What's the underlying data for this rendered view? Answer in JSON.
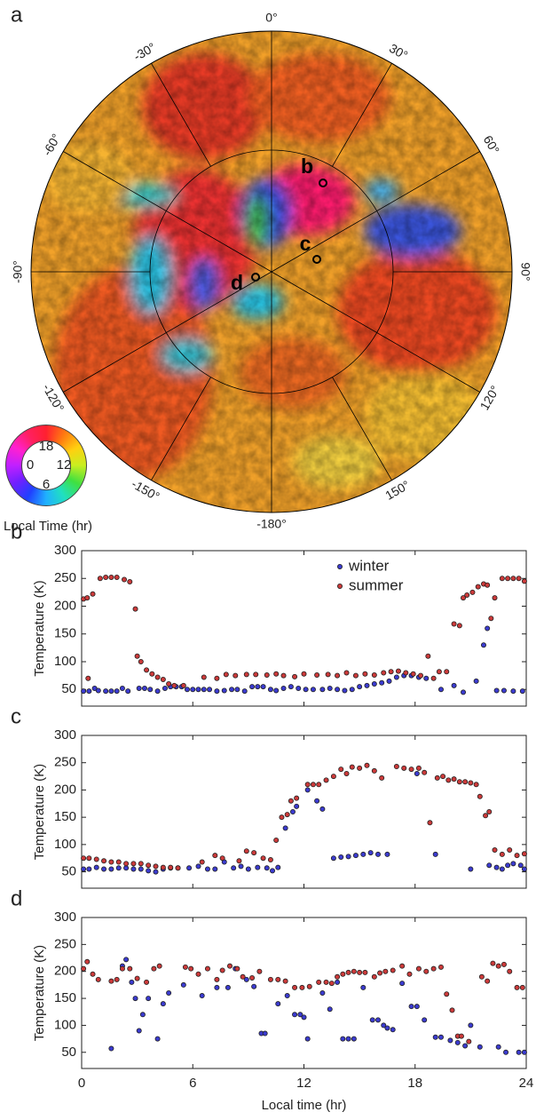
{
  "map": {
    "panel_label": "a",
    "longitude_labels": [
      "0°",
      "30°",
      "60°",
      "90°",
      "120°",
      "150°",
      "-180°",
      "-150°",
      "-120°",
      "-90°",
      "-60°",
      "-30°"
    ],
    "sites": [
      "b",
      "c",
      "d"
    ],
    "colorwheel": {
      "labels": [
        "18",
        "12",
        "6",
        "0"
      ],
      "title": "Local Time (hr)"
    }
  },
  "chart_data": [
    {
      "type": "scatter",
      "panel_label": "b",
      "y_label": "Temperature (K)",
      "xlim": [
        0,
        24
      ],
      "ylim": [
        20,
        300
      ],
      "xticks": [
        0,
        6,
        12,
        18,
        24
      ],
      "show_xtick_labels": false,
      "yticks": [
        50,
        100,
        150,
        200,
        250,
        300
      ],
      "legend": "upper right",
      "series": [
        {
          "name": "winter",
          "color": "#3b3bd0",
          "x": [
            0.1,
            0.4,
            0.7,
            0.9,
            1.3,
            1.6,
            1.9,
            2.2,
            2.5,
            3.1,
            3.4,
            3.7,
            4.1,
            4.5,
            4.8,
            5.1,
            5.4,
            5.7,
            6.0,
            6.3,
            6.6,
            6.9,
            7.3,
            7.7,
            8.1,
            8.4,
            8.8,
            9.2,
            9.5,
            9.8,
            10.2,
            10.5,
            10.9,
            11.3,
            11.7,
            12.1,
            12.5,
            13.0,
            13.4,
            13.8,
            14.2,
            14.6,
            15.0,
            15.4,
            15.8,
            16.2,
            16.6,
            17.0,
            17.4,
            17.8,
            18.2,
            18.6,
            19.4,
            20.1,
            20.6,
            21.3,
            21.7,
            21.9,
            22.4,
            22.8,
            23.3,
            23.8
          ],
          "values": [
            47,
            47,
            52,
            48,
            47,
            47,
            47,
            52,
            47,
            52,
            52,
            50,
            47,
            52,
            55,
            55,
            55,
            50,
            50,
            50,
            50,
            50,
            47,
            48,
            50,
            50,
            47,
            55,
            55,
            55,
            50,
            48,
            52,
            55,
            52,
            50,
            50,
            50,
            52,
            50,
            48,
            50,
            55,
            57,
            60,
            62,
            65,
            72,
            75,
            75,
            72,
            70,
            50,
            57,
            45,
            65,
            130,
            160,
            48,
            48,
            47,
            47
          ]
        },
        {
          "name": "summer",
          "color": "#cc3a3a",
          "x": [
            0.1,
            0.3,
            0.35,
            0.6,
            1.0,
            1.3,
            1.6,
            1.9,
            2.3,
            2.6,
            2.9,
            3.0,
            3.2,
            3.5,
            3.8,
            4.1,
            4.4,
            4.7,
            5.0,
            5.5,
            6.6,
            7.3,
            7.8,
            8.3,
            8.9,
            9.4,
            10.0,
            10.5,
            10.9,
            11.5,
            12.0,
            12.7,
            13.3,
            13.8,
            14.3,
            14.8,
            15.3,
            15.8,
            16.3,
            16.7,
            17.1,
            17.5,
            17.9,
            18.3,
            18.7,
            19.0,
            19.3,
            19.7,
            20.1,
            20.4,
            20.6,
            20.8,
            21.1,
            21.4,
            21.7,
            21.9,
            22.1,
            22.3,
            22.7,
            23.0,
            23.3,
            23.6,
            23.9
          ],
          "values": [
            213,
            215,
            70,
            222,
            250,
            252,
            252,
            252,
            248,
            244,
            195,
            110,
            100,
            85,
            78,
            72,
            68,
            60,
            57,
            57,
            72,
            70,
            77,
            75,
            77,
            77,
            76,
            78,
            75,
            73,
            78,
            76,
            77,
            75,
            80,
            75,
            78,
            76,
            80,
            82,
            83,
            80,
            78,
            75,
            110,
            70,
            82,
            82,
            168,
            165,
            215,
            220,
            225,
            235,
            240,
            238,
            178,
            215,
            250,
            250,
            250,
            250,
            245
          ]
        }
      ]
    },
    {
      "type": "scatter",
      "panel_label": "c",
      "y_label": "Temperature (K)",
      "xlim": [
        0,
        24
      ],
      "ylim": [
        20,
        300
      ],
      "xticks": [
        0,
        6,
        12,
        18,
        24
      ],
      "show_xtick_labels": false,
      "yticks": [
        50,
        100,
        150,
        200,
        250,
        300
      ],
      "series": [
        {
          "color": "#3b3bd0",
          "x": [
            0.1,
            0.4,
            0.8,
            1.2,
            1.6,
            2.0,
            2.4,
            2.8,
            3.2,
            3.6,
            4.0,
            4.4,
            4.8,
            5.2,
            5.8,
            6.3,
            6.8,
            7.2,
            7.7,
            8.2,
            8.6,
            9.0,
            9.5,
            10.0,
            10.3,
            10.6,
            11.0,
            11.4,
            11.6,
            12.2,
            12.7,
            13.0,
            13.6,
            14.0,
            14.4,
            14.8,
            15.2,
            15.6,
            16.0,
            16.5,
            18.1,
            19.1,
            21.0,
            22.0,
            22.4,
            22.7,
            23.0,
            23.3,
            23.7,
            23.9
          ],
          "values": [
            55,
            55,
            58,
            55,
            55,
            57,
            57,
            55,
            55,
            52,
            50,
            55,
            57,
            57,
            57,
            60,
            55,
            55,
            68,
            57,
            60,
            55,
            58,
            57,
            52,
            58,
            130,
            160,
            170,
            200,
            180,
            165,
            75,
            77,
            78,
            80,
            82,
            85,
            82,
            82,
            230,
            82,
            55,
            62,
            58,
            55,
            62,
            65,
            62,
            55
          ]
        },
        {
          "color": "#cc3a3a",
          "x": [
            0.1,
            0.4,
            0.8,
            1.2,
            1.6,
            2.0,
            2.4,
            2.8,
            3.2,
            3.6,
            4.0,
            4.4,
            4.8,
            5.2,
            6.5,
            7.2,
            7.6,
            8.5,
            8.9,
            9.3,
            9.8,
            10.2,
            10.5,
            10.8,
            11.1,
            11.3,
            11.6,
            12.2,
            12.5,
            12.8,
            13.2,
            13.6,
            14.0,
            14.3,
            14.6,
            15.0,
            15.4,
            15.8,
            16.2,
            17.0,
            17.4,
            17.8,
            18.2,
            18.5,
            18.8,
            19.2,
            19.5,
            19.8,
            20.1,
            20.4,
            20.7,
            21.0,
            21.3,
            21.5,
            21.8,
            22.0,
            22.3,
            22.7,
            23.1,
            23.5,
            23.9
          ],
          "values": [
            75,
            75,
            73,
            70,
            68,
            68,
            65,
            65,
            65,
            62,
            60,
            58,
            58,
            57,
            68,
            80,
            75,
            70,
            88,
            85,
            75,
            72,
            108,
            150,
            155,
            180,
            185,
            210,
            210,
            210,
            218,
            225,
            238,
            230,
            242,
            240,
            245,
            235,
            222,
            243,
            240,
            238,
            240,
            232,
            140,
            222,
            225,
            218,
            220,
            215,
            215,
            213,
            210,
            188,
            153,
            160,
            90,
            82,
            90,
            80,
            83
          ]
        }
      ]
    },
    {
      "type": "scatter",
      "panel_label": "d",
      "y_label": "Temperature (K)",
      "x_label": "Local time (hr)",
      "xlim": [
        0,
        24
      ],
      "ylim": [
        20,
        300
      ],
      "xticks": [
        0,
        6,
        12,
        18,
        24
      ],
      "show_xtick_labels": true,
      "yticks": [
        50,
        100,
        150,
        200,
        250,
        300
      ],
      "series": [
        {
          "color": "#3b3bd0",
          "x": [
            1.6,
            2.2,
            2.4,
            2.7,
            2.9,
            3.1,
            3.3,
            3.6,
            4.1,
            4.4,
            4.7,
            5.5,
            6.5,
            7.3,
            7.9,
            8.3,
            8.9,
            9.3,
            9.7,
            9.9,
            10.6,
            11.1,
            11.5,
            11.8,
            12.0,
            12.2,
            13.0,
            13.4,
            13.8,
            14.1,
            14.4,
            14.7,
            15.2,
            15.7,
            16.0,
            16.3,
            16.5,
            16.8,
            17.3,
            17.8,
            18.1,
            18.5,
            19.1,
            19.4,
            19.9,
            20.3,
            20.7,
            21.0,
            21.5,
            22.5,
            22.9,
            23.6,
            23.9
          ],
          "values": [
            57,
            210,
            222,
            180,
            150,
            90,
            120,
            150,
            75,
            140,
            160,
            175,
            155,
            170,
            170,
            205,
            185,
            172,
            85,
            85,
            140,
            155,
            120,
            120,
            115,
            75,
            160,
            130,
            180,
            75,
            75,
            75,
            170,
            110,
            110,
            100,
            95,
            92,
            178,
            135,
            135,
            110,
            78,
            78,
            72,
            68,
            62,
            100,
            60,
            60,
            50,
            50,
            50
          ]
        },
        {
          "color": "#cc3a3a",
          "x": [
            0.1,
            0.3,
            0.6,
            0.9,
            1.6,
            1.9,
            2.2,
            2.6,
            3.0,
            3.5,
            3.9,
            4.2,
            5.6,
            5.9,
            6.3,
            6.8,
            7.3,
            7.6,
            8.0,
            8.4,
            8.7,
            9.2,
            9.6,
            10.2,
            10.6,
            11.0,
            11.5,
            11.9,
            12.3,
            12.8,
            13.2,
            13.5,
            13.8,
            14.1,
            14.4,
            14.7,
            15.0,
            15.3,
            15.8,
            16.1,
            16.4,
            16.8,
            17.3,
            17.7,
            18.2,
            18.6,
            19.0,
            19.4,
            19.7,
            20.0,
            20.3,
            20.5,
            20.9,
            21.6,
            21.9,
            22.2,
            22.5,
            22.8,
            23.1,
            23.5,
            23.8
          ],
          "values": [
            205,
            218,
            195,
            185,
            182,
            185,
            205,
            205,
            187,
            180,
            205,
            210,
            208,
            205,
            195,
            205,
            185,
            202,
            210,
            205,
            190,
            188,
            200,
            185,
            185,
            182,
            170,
            170,
            172,
            180,
            180,
            178,
            190,
            195,
            198,
            200,
            198,
            198,
            190,
            197,
            200,
            202,
            210,
            195,
            205,
            200,
            205,
            208,
            158,
            128,
            80,
            80,
            70,
            190,
            182,
            215,
            210,
            213,
            200,
            170,
            170
          ]
        }
      ]
    }
  ]
}
